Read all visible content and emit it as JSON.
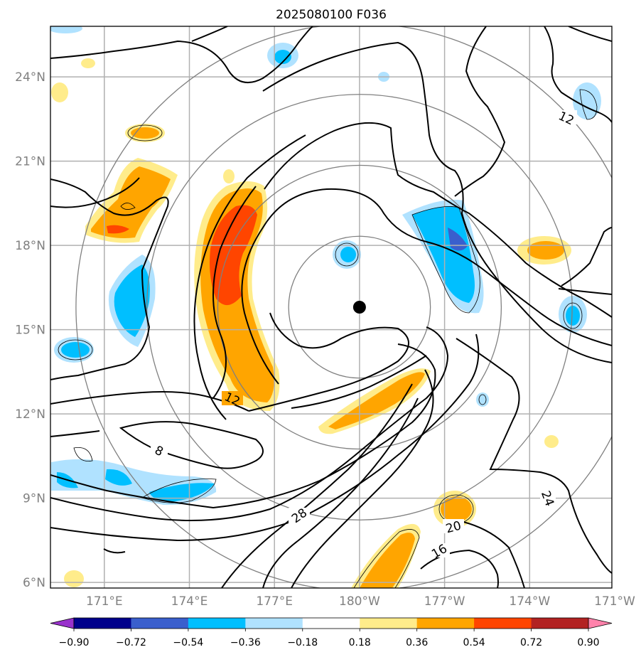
{
  "chart_data": {
    "type": "contour-map",
    "title": "2025080100 F036",
    "x_ticks": [
      "171°E",
      "174°E",
      "177°E",
      "180°W",
      "177°W",
      "174°W",
      "171°W"
    ],
    "y_ticks": [
      "6°N",
      "9°N",
      "12°N",
      "15°N",
      "18°N",
      "21°N",
      "24°N"
    ],
    "x_range_lon": [
      169.1,
      188.9
    ],
    "y_range_lat": [
      5.8,
      25.8
    ],
    "storm_center": {
      "lon": 180.0,
      "lat": 15.8
    },
    "range_rings_deg": [
      2.5,
      5.0,
      7.5,
      10.0
    ],
    "contour_labels": [
      "12",
      "12",
      "8",
      "28",
      "20",
      "16",
      "24"
    ],
    "colorbar": {
      "boundaries": [
        -0.9,
        -0.72,
        -0.54,
        -0.36,
        -0.18,
        0.18,
        0.36,
        0.54,
        0.72,
        0.9
      ],
      "tick_labels": [
        "−0.90",
        "−0.72",
        "−0.54",
        "−0.36",
        "−0.18",
        "0.18",
        "0.36",
        "0.54",
        "0.72",
        "0.90"
      ],
      "colors": [
        "#9932cc",
        "#00008b",
        "#3a5fcd",
        "#00bfff",
        "#b0e2ff",
        "#ffffff",
        "#ffec8b",
        "#ffa500",
        "#ff4500",
        "#b22222",
        "#ff82ab"
      ],
      "extend": "both"
    },
    "grid": true
  }
}
